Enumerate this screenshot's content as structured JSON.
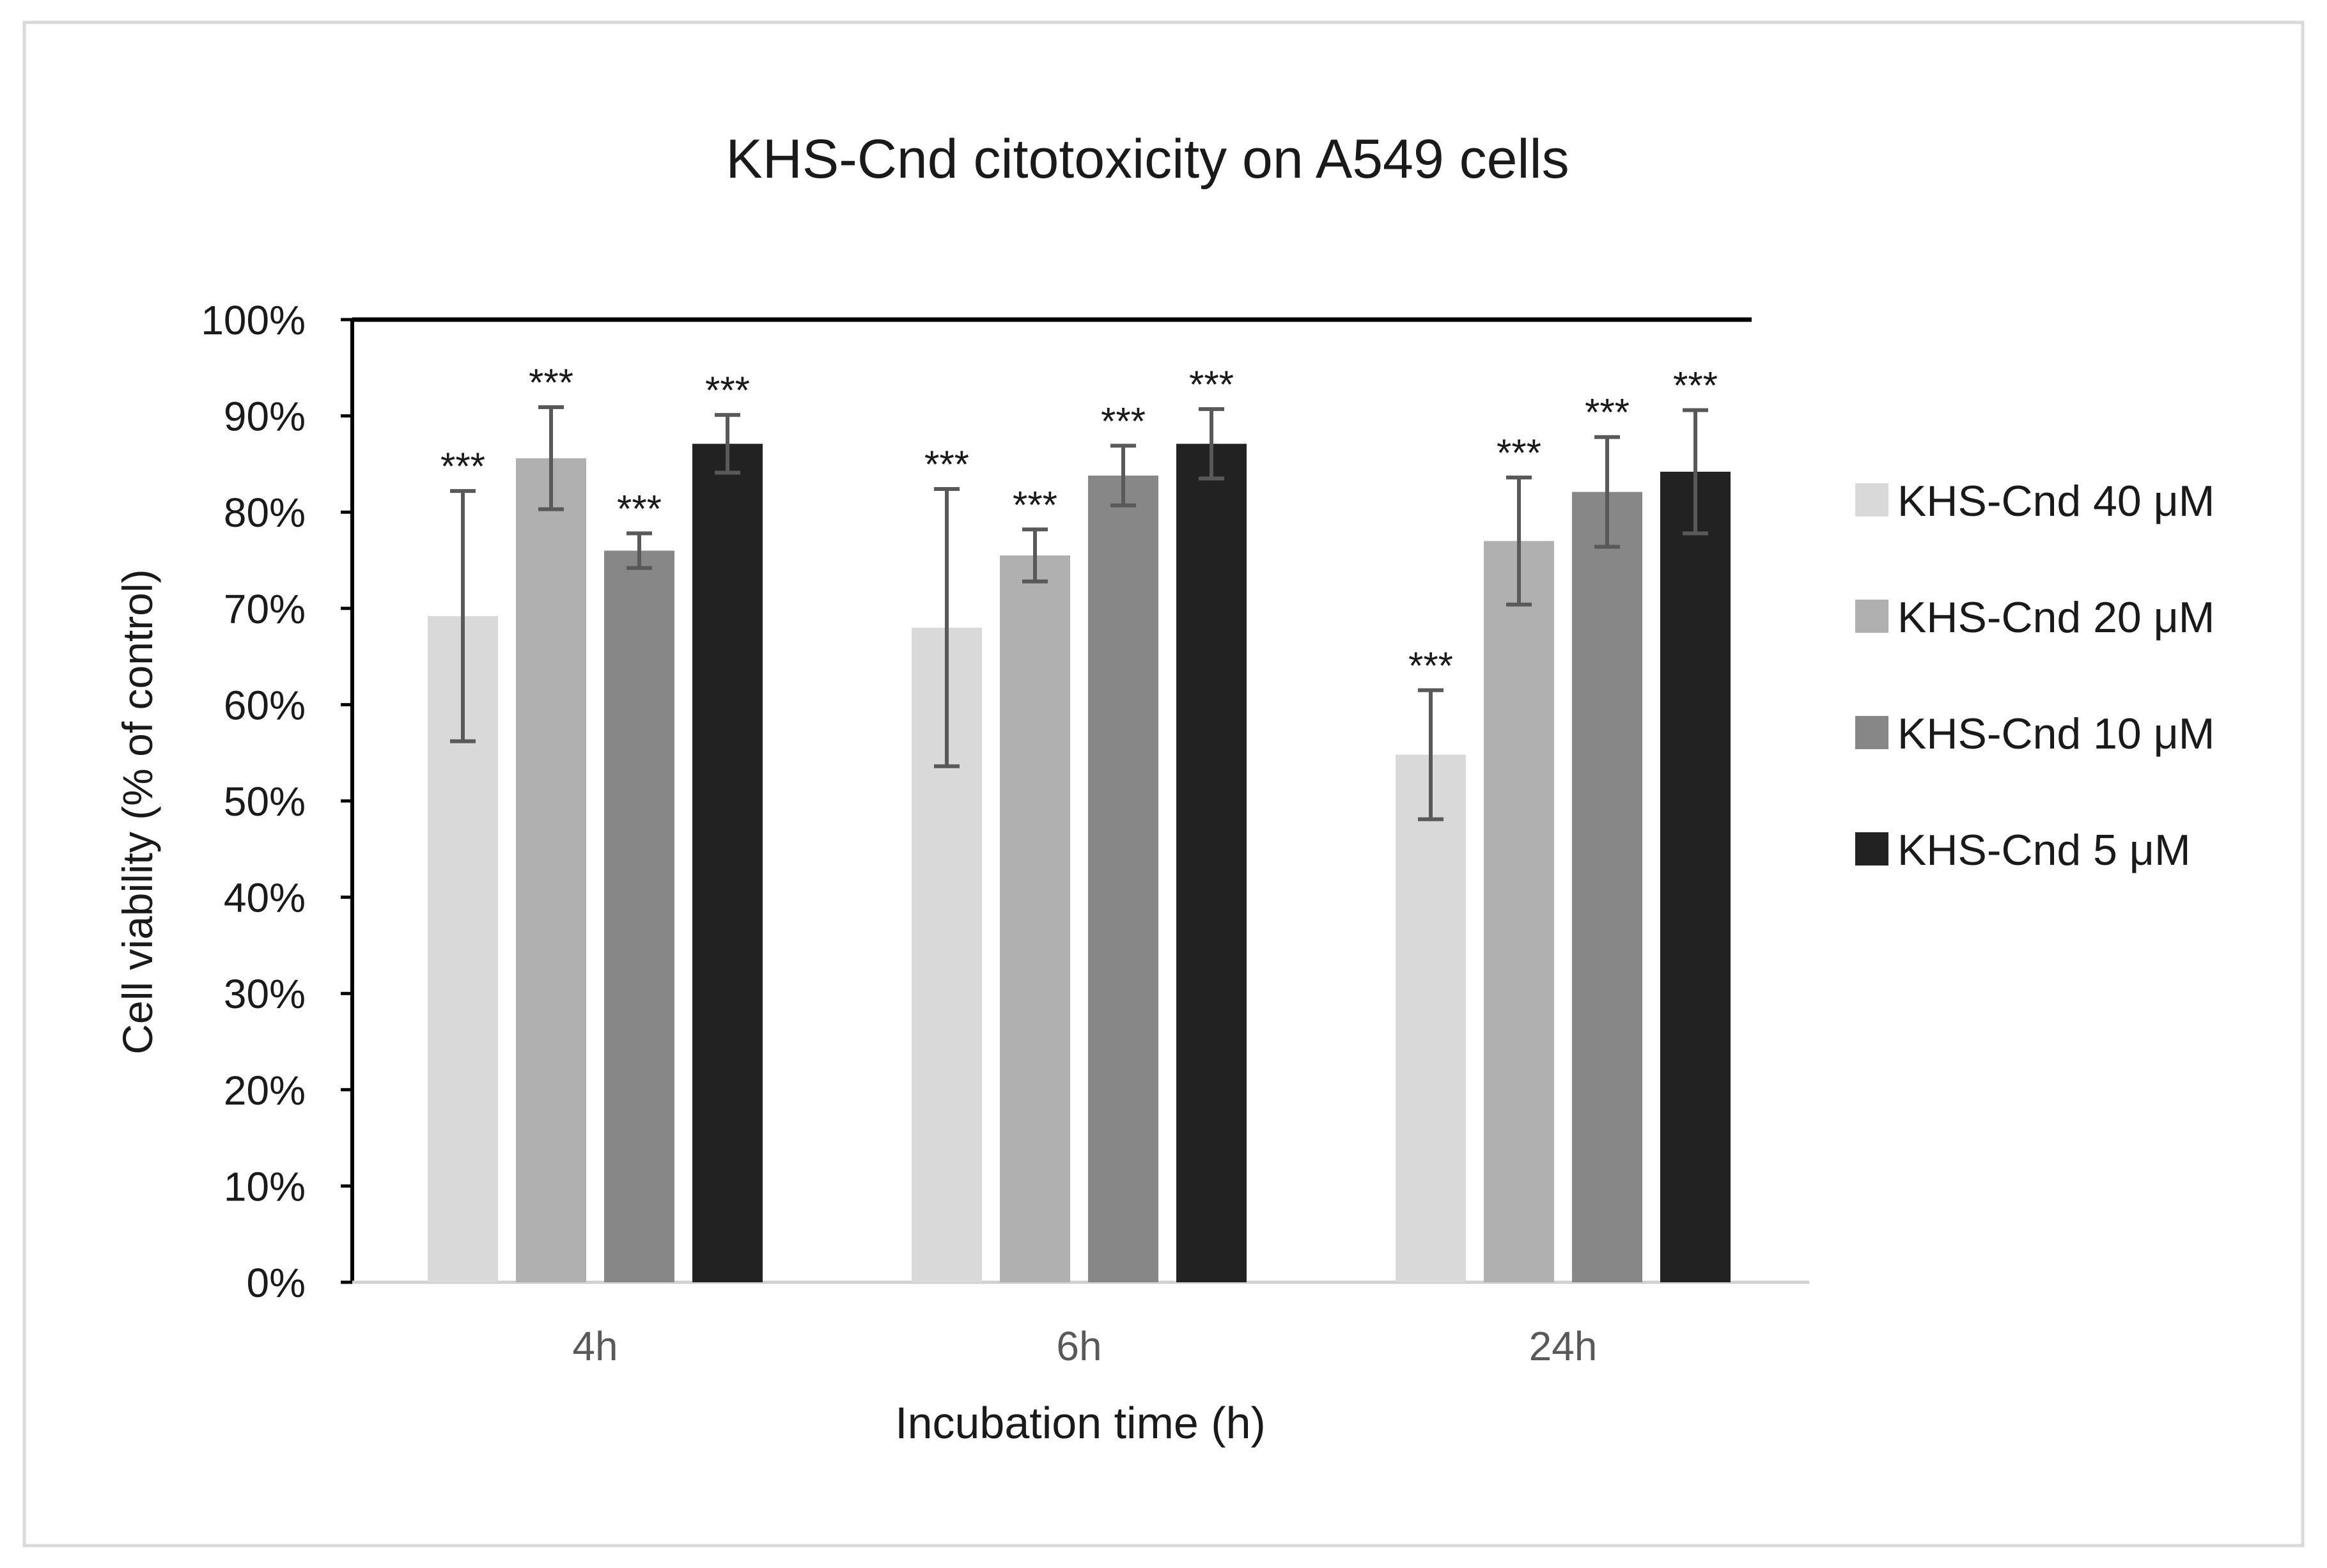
{
  "chart_data": {
    "type": "bar",
    "title": "KHS-Cnd citotoxicity on A549 cells",
    "xlabel": "Incubation time (h)",
    "ylabel": "Cell viability (% of control)",
    "ylim": [
      0,
      100
    ],
    "yticks": [
      "0%",
      "10%",
      "20%",
      "30%",
      "40%",
      "50%",
      "60%",
      "70%",
      "80%",
      "90%",
      "100%"
    ],
    "categories": [
      "4h",
      "6h",
      "24h"
    ],
    "legend_position": "right",
    "significance_label": "***",
    "series": [
      {
        "name": "KHS-Cnd 40 μM",
        "color": "#d9d9d9",
        "values": [
          69.2,
          68.0,
          54.8
        ],
        "errors": [
          13.0,
          14.4,
          6.7
        ]
      },
      {
        "name": "KHS-Cnd 20 μM",
        "color": "#b0b0b0",
        "values": [
          85.6,
          75.5,
          77.0
        ],
        "errors": [
          5.3,
          2.7,
          6.6
        ]
      },
      {
        "name": "KHS-Cnd 10 μM",
        "color": "#878787",
        "values": [
          76.0,
          83.8,
          82.1
        ],
        "errors": [
          1.8,
          3.1,
          5.7
        ]
      },
      {
        "name": "KHS-Cnd 5 μM",
        "color": "#222222",
        "values": [
          87.1,
          87.1,
          84.2
        ],
        "errors": [
          3.0,
          3.6,
          6.4
        ]
      }
    ]
  }
}
